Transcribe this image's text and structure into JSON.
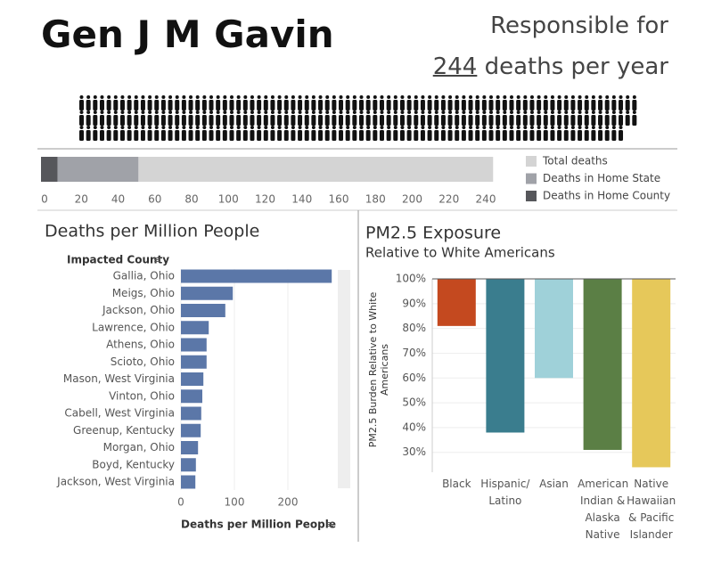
{
  "header": {
    "title": "Gen J M Gavin",
    "lead": "Responsible for",
    "deaths": 244,
    "unit": "deaths per year"
  },
  "chart_data": [
    {
      "type": "overlay-bar",
      "series": [
        {
          "name": "Total deaths",
          "color": "#d4d4d4",
          "values": [
            244
          ]
        },
        {
          "name": "Deaths in Home State",
          "color": "#a0a2a8",
          "values": [
            51
          ]
        },
        {
          "name": "Deaths in Home County",
          "color": "#56575b",
          "values": [
            7
          ]
        }
      ],
      "xlim": [
        0,
        246
      ],
      "xticks": [
        0,
        20,
        40,
        60,
        80,
        100,
        120,
        140,
        160,
        180,
        200,
        220,
        240
      ]
    },
    {
      "type": "hbar",
      "title": "Deaths per Million People",
      "y_label": "Impacted County",
      "x_label": "Deaths per Million People",
      "categories": [
        "Gallia, Ohio",
        "Meigs, Ohio",
        "Jackson, Ohio",
        "Lawrence, Ohio",
        "Athens, Ohio",
        "Scioto, Ohio",
        "Mason, West Virginia",
        "Vinton, Ohio",
        "Cabell, West Virginia",
        "Greenup, Kentucky",
        "Morgan, Ohio",
        "Boyd, Kentucky",
        "Jackson, West Virginia"
      ],
      "values": [
        282,
        97,
        83,
        52,
        48,
        48,
        42,
        40,
        38,
        37,
        32,
        28,
        27
      ],
      "color": "#5b77a8",
      "xlim": [
        0,
        290
      ],
      "xticks": [
        0,
        100,
        200
      ]
    },
    {
      "type": "hang-bar",
      "title": "PM2.5 Exposure",
      "subtitle": "Relative to White Americans",
      "y_label": "PM2.5 Burden Relative to White Americans",
      "categories": [
        "Black",
        "Hispanic/ Latino",
        "Asian",
        "American Indian & Alaska Native",
        "Native Hawaiian & Pacific Islander"
      ],
      "values": [
        81,
        38,
        60,
        31,
        24
      ],
      "colors": [
        "#c4491f",
        "#3a7d8e",
        "#9fd1d9",
        "#5b7f45",
        "#e6c85a"
      ],
      "ylim": [
        22,
        100
      ],
      "yticks": [
        {
          "value": 30,
          "label": "30%"
        },
        {
          "value": 40,
          "label": "40%"
        },
        {
          "value": 50,
          "label": "50%"
        },
        {
          "value": 60,
          "label": "60%"
        },
        {
          "value": 70,
          "label": "70%"
        },
        {
          "value": 80,
          "label": "80%"
        },
        {
          "value": 90,
          "label": "90%"
        },
        {
          "value": 100,
          "label": "100%"
        }
      ],
      "grid": true
    }
  ]
}
